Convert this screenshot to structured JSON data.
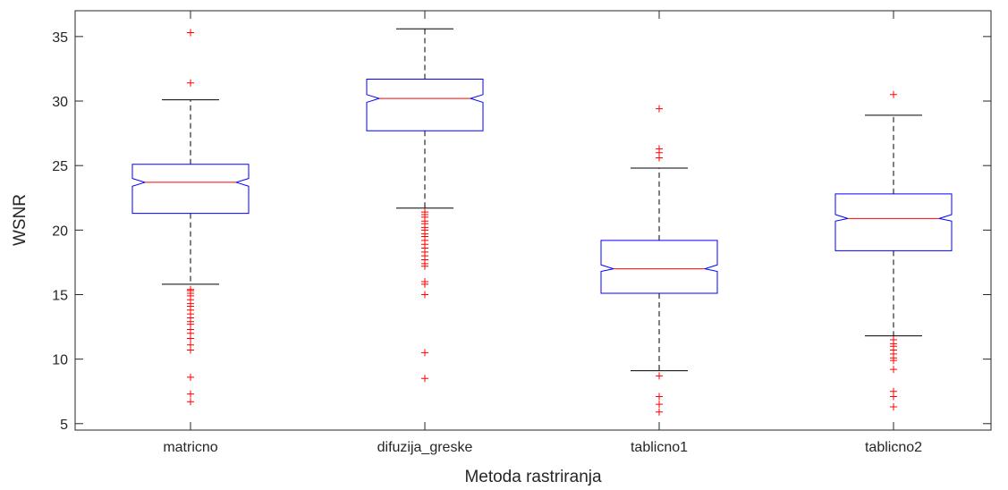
{
  "chart_data": {
    "type": "boxplot",
    "title": "",
    "xlabel": "Metoda rastriranja",
    "ylabel": "WSNR",
    "ylim": [
      4.5,
      37
    ],
    "yticks": [
      5,
      10,
      15,
      20,
      25,
      30,
      35
    ],
    "notched": true,
    "grid": false,
    "colors": {
      "box": "#0000ff",
      "median": "#ff0000",
      "whisker": "#000000",
      "outlier": "#ff0000",
      "axis": "#262626"
    },
    "categories": [
      "matricno",
      "difuzija_greske",
      "tablicno1",
      "tablicno2"
    ],
    "boxes": [
      {
        "q1": 21.3,
        "median": 23.7,
        "q3": 25.1,
        "notch_low": 23.4,
        "notch_high": 24.0,
        "whisker_low": 15.8,
        "whisker_high": 30.1,
        "outliers": [
          35.3,
          31.4,
          15.4,
          15.3,
          15.1,
          14.9,
          14.6,
          14.3,
          14.1,
          13.8,
          13.5,
          13.2,
          12.9,
          12.7,
          12.3,
          12.0,
          11.6,
          11.1,
          10.7,
          8.6,
          7.3,
          6.7
        ]
      },
      {
        "q1": 27.7,
        "median": 30.2,
        "q3": 31.7,
        "notch_low": 29.9,
        "notch_high": 30.5,
        "whisker_low": 21.7,
        "whisker_high": 35.6,
        "outliers": [
          21.4,
          21.2,
          21.0,
          20.7,
          20.5,
          20.2,
          20.0,
          19.7,
          19.5,
          19.2,
          18.9,
          18.6,
          18.3,
          18.0,
          17.7,
          17.4,
          17.2,
          16.0,
          15.8,
          15.0,
          10.5,
          8.5
        ]
      },
      {
        "q1": 15.1,
        "median": 17.0,
        "q3": 19.2,
        "notch_low": 16.8,
        "notch_high": 17.3,
        "whisker_low": 9.1,
        "whisker_high": 24.8,
        "outliers": [
          29.4,
          26.3,
          26.0,
          25.6,
          8.7,
          7.1,
          6.5,
          5.9
        ]
      },
      {
        "q1": 18.4,
        "median": 20.9,
        "q3": 22.8,
        "notch_low": 20.7,
        "notch_high": 21.2,
        "whisker_low": 11.8,
        "whisker_high": 28.9,
        "outliers": [
          30.5,
          11.5,
          11.2,
          11.0,
          10.7,
          10.4,
          10.1,
          9.9,
          9.2,
          7.5,
          7.1,
          6.3
        ]
      }
    ]
  }
}
